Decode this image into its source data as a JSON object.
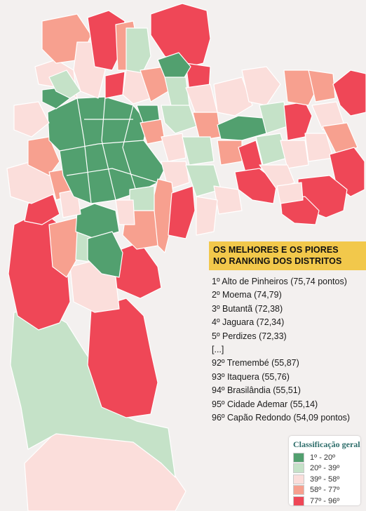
{
  "title": {
    "line1": "OS MELHORES E OS PIORES",
    "line2": "NO RANKING DOS DISTRITOS"
  },
  "ranking": [
    "1º Alto de Pinheiros (75,74 pontos)",
    "2º Moema (74,79)",
    "3º Butantã (72,38)",
    "4º Jaguara (72,34)",
    "5º Perdizes (72,33)",
    "[...]",
    "92º Tremembé (55,87)",
    "93º Itaquera (55,76)",
    "94º Brasilândia (55,51)",
    "95º Cidade Ademar (55,14)",
    "96º Capão Redondo (54,09 pontos)"
  ],
  "legend": {
    "title": "Classificação geral",
    "classes": [
      {
        "label": "1º - 20º",
        "color": "#52a06f"
      },
      {
        "label": "20º - 39º",
        "color": "#c5e2c8"
      },
      {
        "label": "39º - 58º",
        "color": "#fbdedb"
      },
      {
        "label": "58º - 77º",
        "color": "#f7a08f"
      },
      {
        "label": "77º - 96º",
        "color": "#ef4757"
      }
    ]
  }
}
